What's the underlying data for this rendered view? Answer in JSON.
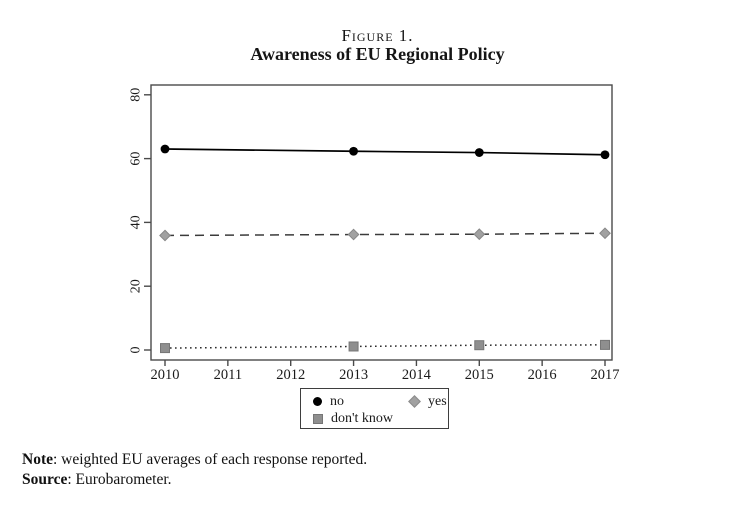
{
  "figure": {
    "label": "Figure 1.",
    "title": "Awareness of EU Regional Policy"
  },
  "chart_data": {
    "type": "line",
    "title": "Figure 1. Awareness of EU Regional Policy",
    "x": [
      2010,
      2013,
      2015,
      2017
    ],
    "series": [
      {
        "name": "no",
        "marker": "circle",
        "marker_color": "#000000",
        "line_style": "solid",
        "line_color": "#000000",
        "values": [
          63.0,
          62.3,
          61.9,
          61.2
        ]
      },
      {
        "name": "yes",
        "marker": "diamond",
        "marker_color": "#a1a1a1",
        "line_style": "dashed",
        "line_color": "#3b3b3b",
        "values": [
          35.9,
          36.2,
          36.3,
          36.6
        ]
      },
      {
        "name": "don't know",
        "marker": "square",
        "marker_color": "#8f8f8f",
        "line_style": "dotted",
        "line_color": "#2b2b2b",
        "values": [
          0.6,
          1.1,
          1.5,
          1.6
        ]
      }
    ],
    "xticks": [
      2010,
      2011,
      2012,
      2013,
      2014,
      2015,
      2016,
      2017
    ],
    "yticks": [
      0,
      20,
      40,
      60,
      80
    ],
    "ylim": [
      0,
      80
    ],
    "grid": false,
    "legend_position": "bottom-center",
    "axis_color": "#4a4a4a"
  },
  "notes": {
    "note_label": "Note",
    "note_text": ": weighted EU averages of each response reported.",
    "source_label": "Source",
    "source_text": ": Eurobarometer."
  }
}
